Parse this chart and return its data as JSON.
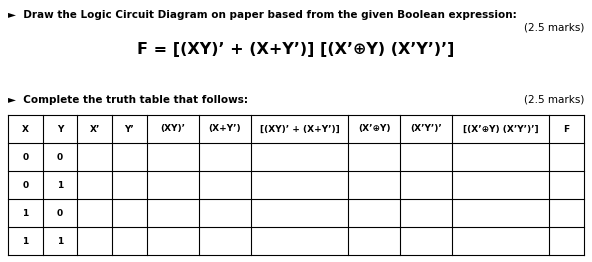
{
  "title_line1": "►  Draw the Logic Circuit Diagram on paper based from the given Boolean expression:",
  "marks_line1": "(2.5 marks)",
  "formula": "F = [(XY)’ + (X+Y’)] [(X’⊕Y) (X’Y’)’]",
  "title_line2": "►  Complete the truth table that follows:",
  "marks_line2": "(2.5 marks)",
  "col_headers": [
    "X",
    "Y",
    "X’",
    "Y’",
    "(XY)’",
    "(X+Y’)",
    "[(XY)’ + (X+Y’)]",
    "(X’⊕Y)",
    "(X’Y’)’",
    "[(X’⊕Y) (X’Y’)’]",
    "F"
  ],
  "rows": [
    [
      "0",
      "0",
      "",
      "",
      "",
      "",
      "",
      "",
      "",
      "",
      ""
    ],
    [
      "0",
      "1",
      "",
      "",
      "",
      "",
      "",
      "",
      "",
      "",
      ""
    ],
    [
      "1",
      "0",
      "",
      "",
      "",
      "",
      "",
      "",
      "",
      "",
      ""
    ],
    [
      "1",
      "1",
      "",
      "",
      "",
      "",
      "",
      "",
      "",
      "",
      ""
    ]
  ],
  "bg_color": "#ffffff",
  "text_color": "#000000",
  "table_border_color": "#000000",
  "font_size_text": 7.5,
  "font_size_formula": 11.5,
  "font_size_header": 6.5,
  "col_weights": [
    1,
    1,
    1,
    1,
    1.5,
    1.5,
    2.8,
    1.5,
    1.5,
    2.8,
    1
  ]
}
